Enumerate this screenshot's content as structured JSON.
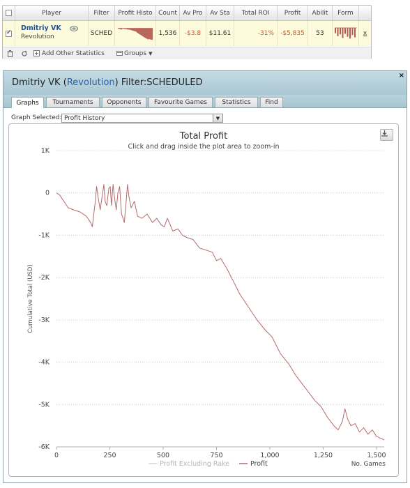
{
  "table": {
    "headers": {
      "player": "Player",
      "filter": "Filter",
      "profit_history": "Profit Histo",
      "count": "Count",
      "av_profit": "Av Pro",
      "av_stake": "Av Sta",
      "total_roi": "Total ROI",
      "profit": "Profit",
      "ability": "Abilit",
      "form": "Form"
    },
    "row": {
      "selected": true,
      "name": "Dmitriy VK",
      "network": "Revolution",
      "filter": "SCHED",
      "count": "1,536",
      "av_profit": "-$3.8",
      "av_stake": "$11.61",
      "total_roi": "-31%",
      "profit": "-$5,835",
      "ability": "53",
      "remove": "x",
      "form_bars": [
        0.45,
        0.7,
        0.55,
        0.85,
        0.5,
        0.75,
        0.9,
        0.6,
        0.8
      ]
    },
    "footer": {
      "add_stats": "Add Other Statistics",
      "groups": "Groups"
    }
  },
  "window": {
    "name": "Dmitriy VK",
    "network": "Revolution",
    "filter_label": "Filter:",
    "filter_value": "SCHEDULED",
    "close": "×",
    "tabs": [
      "Graphs",
      "Tournaments",
      "Opponents",
      "Favourite Games",
      "Statistics",
      "Find"
    ],
    "active_tab": "Graphs",
    "graph_selected_label": "Graph Selected:",
    "graph_selected_value": "Profit History"
  },
  "colors": {
    "profit_line": "#b56a6a",
    "rake_line": "#d5d5d5",
    "accent_name": "#1f4f8e",
    "negative": "#c85a2c"
  },
  "chart_data": {
    "type": "line",
    "title": "Total Profit",
    "subtitle": "Click and drag inside the plot area to zoom-in",
    "ylabel": "Cumulative Total (USD)",
    "xlabel": "No. Games",
    "xlim": [
      0,
      1536
    ],
    "ylim": [
      -6000,
      1000
    ],
    "x_ticks": [
      0,
      250,
      500,
      750,
      1000,
      1250,
      1500
    ],
    "x_tick_labels": [
      "0",
      "250",
      "500",
      "750",
      "1,000",
      "1,250",
      "1,500"
    ],
    "y_ticks": [
      1000,
      0,
      -1000,
      -2000,
      -3000,
      -4000,
      -5000,
      -6000
    ],
    "y_tick_labels": [
      "1K",
      "0",
      "-1K",
      "-2K",
      "-3K",
      "-4K",
      "-5K",
      "-6K"
    ],
    "legend": [
      "Profit Excluding Rake",
      "Profit"
    ],
    "legend_position": "bottom",
    "grid": true,
    "series": [
      {
        "name": "Profit",
        "x": [
          0,
          15,
          35,
          55,
          80,
          110,
          140,
          160,
          168,
          175,
          182,
          188,
          195,
          205,
          215,
          222,
          228,
          236,
          245,
          252,
          258,
          265,
          272,
          280,
          288,
          296,
          305,
          312,
          318,
          325,
          333,
          340,
          350,
          365,
          380,
          400,
          425,
          450,
          470,
          490,
          505,
          520,
          545,
          570,
          590,
          610,
          640,
          670,
          700,
          730,
          750,
          770,
          800,
          830,
          860,
          900,
          940,
          980,
          1010,
          1050,
          1090,
          1120,
          1150,
          1180,
          1210,
          1240,
          1270,
          1300,
          1320,
          1340,
          1352,
          1365,
          1380,
          1400,
          1420,
          1440,
          1460,
          1480,
          1500,
          1520,
          1536
        ],
        "values": [
          0,
          -50,
          -200,
          -350,
          -400,
          -450,
          -550,
          -700,
          -800,
          -500,
          -200,
          150,
          -100,
          -400,
          -50,
          200,
          -200,
          -300,
          100,
          150,
          -300,
          200,
          -100,
          -400,
          0,
          150,
          -500,
          -600,
          -700,
          -300,
          200,
          -100,
          -350,
          -200,
          -550,
          -600,
          -500,
          -700,
          -600,
          -750,
          -800,
          -600,
          -900,
          -850,
          -1000,
          -1050,
          -1100,
          -1300,
          -1350,
          -1400,
          -1600,
          -1550,
          -1800,
          -2100,
          -2400,
          -2700,
          -3000,
          -3250,
          -3400,
          -3800,
          -4050,
          -4300,
          -4500,
          -4700,
          -4900,
          -5050,
          -5300,
          -5500,
          -5600,
          -5400,
          -5100,
          -5350,
          -5500,
          -5450,
          -5650,
          -5550,
          -5700,
          -5600,
          -5750,
          -5800,
          -5835
        ]
      }
    ]
  }
}
